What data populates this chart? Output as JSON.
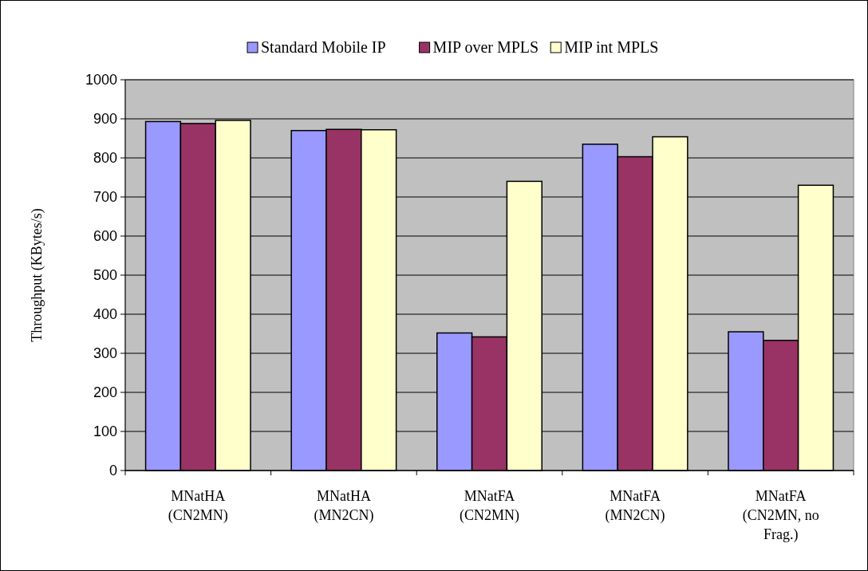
{
  "chart_data": {
    "type": "bar",
    "ylabel": "Throughput (KBytes/s)",
    "categories": [
      "MNatHA (CN2MN)",
      "MNatHA (MN2CN)",
      "MNatFA (CN2MN)",
      "MNatFA (MN2CN)",
      "MNatFA (CN2MN, no Frag.)"
    ],
    "series": [
      {
        "name": "Standard Mobile IP",
        "color": "#9999ff",
        "values": [
          893,
          870,
          352,
          835,
          355
        ]
      },
      {
        "name": "MIP over MPLS",
        "color": "#993366",
        "values": [
          888,
          873,
          342,
          803,
          333
        ]
      },
      {
        "name": "MIP int MPLS",
        "color": "#ffffcc",
        "values": [
          896,
          872,
          740,
          854,
          730
        ]
      }
    ],
    "ylim": [
      0,
      1000
    ],
    "yticks": [
      0,
      100,
      200,
      300,
      400,
      500,
      600,
      700,
      800,
      900,
      1000
    ],
    "grid": "y",
    "legend": "top"
  }
}
